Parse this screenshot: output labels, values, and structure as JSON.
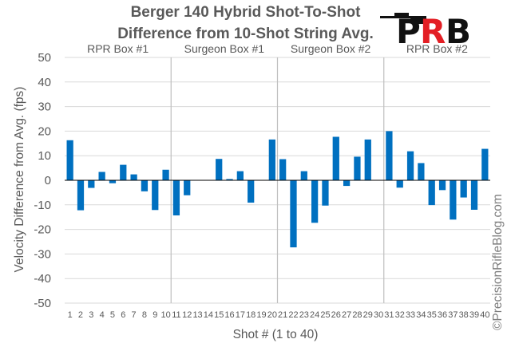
{
  "title_line1": "Berger 140 Hybrid Shot-To-Shot",
  "title_line2": "Difference from 10-Shot String Avg.",
  "watermark": "©PrecisionRifleBlog.com",
  "logo": {
    "wordmark": "PRB"
  },
  "colors": {
    "bar": "#0070C0",
    "grid": "#d9d9d9",
    "separator": "#bfbfbf",
    "text": "#595959",
    "logo_accent": "#e31e24"
  },
  "chart_data": {
    "type": "bar",
    "title": "Berger 140 Hybrid Shot-To-Shot Difference from 10-Shot String Avg.",
    "xlabel": "Shot # (1 to 40)",
    "ylabel": "Velocity Difference from Avg. (fps)",
    "ylim": [
      -50,
      50
    ],
    "yticks": [
      -50,
      -40,
      -30,
      -20,
      -10,
      0,
      10,
      20,
      30,
      40,
      50
    ],
    "grid": true,
    "categories": [
      "1",
      "2",
      "3",
      "4",
      "5",
      "6",
      "7",
      "8",
      "9",
      "10",
      "11",
      "12",
      "13",
      "14",
      "15",
      "16",
      "17",
      "18",
      "19",
      "20",
      "21",
      "22",
      "23",
      "24",
      "25",
      "26",
      "27",
      "28",
      "29",
      "30",
      "31",
      "32",
      "33",
      "34",
      "35",
      "36",
      "37",
      "38",
      "39",
      "40"
    ],
    "values": [
      16.3,
      -12.2,
      -3.1,
      3.4,
      -1.2,
      6.3,
      2.4,
      -4.5,
      -12.1,
      4.3,
      -14.3,
      -6.1,
      0,
      0,
      8.7,
      0.5,
      3.7,
      -9.1,
      0,
      16.6,
      8.6,
      -27.3,
      3.7,
      -17.3,
      -10.3,
      17.7,
      -2.3,
      9.6,
      16.6,
      0,
      20.0,
      -3.0,
      11.8,
      7.0,
      -10.1,
      -4.0,
      -16.0,
      -7.0,
      -12.0,
      12.8
    ],
    "groups": [
      {
        "label": "RPR Box #1"
      },
      {
        "label": "Surgeon Box #1"
      },
      {
        "label": "Surgeon Box #2"
      },
      {
        "label": "RPR Box #2"
      }
    ]
  }
}
